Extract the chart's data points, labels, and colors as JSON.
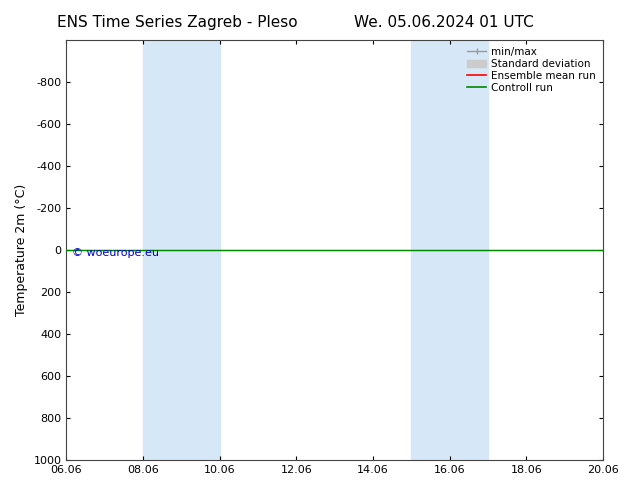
{
  "title_left": "ENS Time Series Zagreb - Pleso",
  "title_right": "We. 05.06.2024 01 UTC",
  "ylabel": "Temperature 2m (°C)",
  "xlabel": "",
  "ylim_top": -1000,
  "ylim_bottom": 1000,
  "yticks": [
    -800,
    -600,
    -400,
    -200,
    0,
    200,
    400,
    600,
    800,
    1000
  ],
  "xlim_left": 0,
  "xlim_right": 14,
  "xtick_positions": [
    0,
    2,
    4,
    6,
    8,
    10,
    12,
    14
  ],
  "xtick_labels": [
    "06.06",
    "08.06",
    "10.06",
    "12.06",
    "14.06",
    "16.06",
    "18.06",
    "20.06"
  ],
  "shade_bands": [
    {
      "xmin": 2,
      "xmax": 4
    },
    {
      "xmin": 9,
      "xmax": 11
    }
  ],
  "shade_color": "#d6e8f7",
  "green_line_y": 0,
  "red_line_y": 0,
  "green_line_color": "#008800",
  "red_line_color": "#ff0000",
  "minmax_color": "#999999",
  "stddev_color": "#cccccc",
  "background_color": "#ffffff",
  "watermark": "© woeurope.eu",
  "watermark_color": "#0000cc",
  "legend_labels": [
    "min/max",
    "Standard deviation",
    "Ensemble mean run",
    "Controll run"
  ],
  "legend_line_colors": [
    "#999999",
    "#cccccc",
    "#ff0000",
    "#008800"
  ],
  "title_fontsize": 11,
  "axis_fontsize": 9,
  "tick_fontsize": 8
}
